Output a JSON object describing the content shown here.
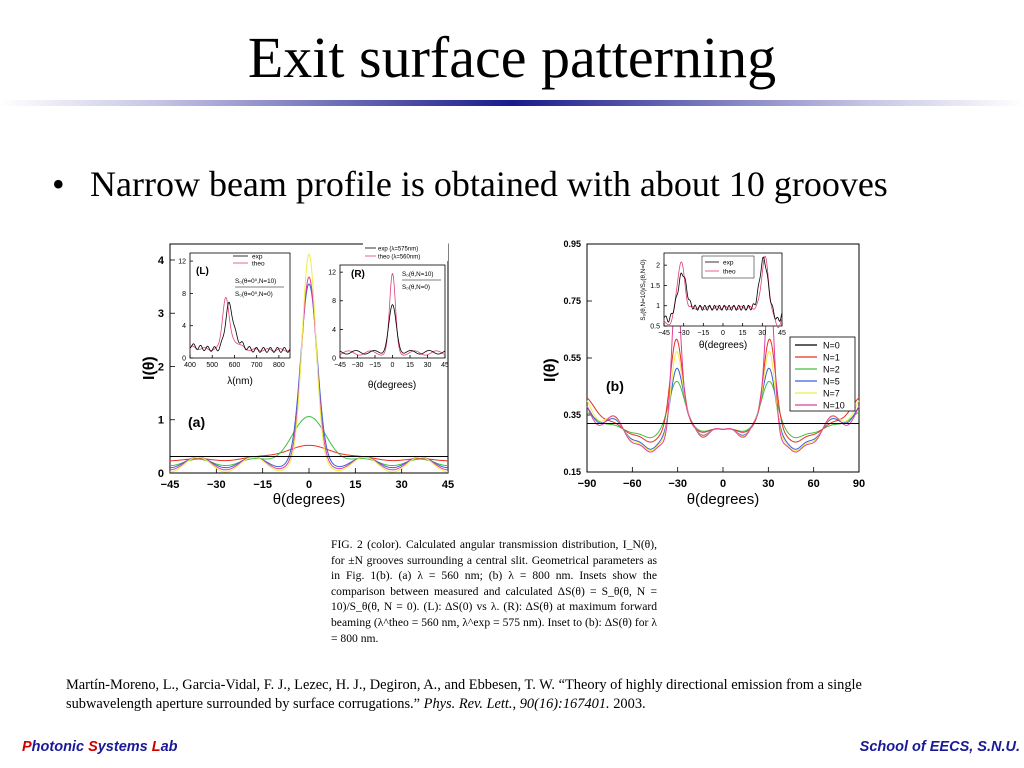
{
  "slide": {
    "title": "Exit surface patterning",
    "bullet_mark": "•",
    "bullet": "Narrow beam profile is obtained with about 10 grooves"
  },
  "figure_a": {
    "panel_label": "(a)",
    "ylabel": "I(θ)",
    "xlabel": "θ(degrees)",
    "xticks": [
      "−45",
      "−30",
      "−15",
      "0",
      "15",
      "30",
      "45"
    ],
    "yticks": [
      "0",
      "1",
      "2",
      "3",
      "4"
    ],
    "inset_L": {
      "label": "(L)",
      "legend": [
        "exp",
        "theo"
      ],
      "formula_num": "S₀(θ=0⁰,N=10)",
      "formula_den": "S₀(θ=0⁰,N=0)",
      "yticks": [
        "0",
        "4",
        "8",
        "12"
      ],
      "xticks": [
        "400",
        "500",
        "600",
        "700",
        "800"
      ],
      "xlabel": "λ(nm)"
    },
    "inset_R": {
      "label": "(R)",
      "legend": [
        "exp (λ=575nm)",
        "theo (λ=560nm)"
      ],
      "formula_num": "S₀(θ,N=10)",
      "formula_den": "S₀(θ,N=0)",
      "yticks": [
        "0",
        "4",
        "8",
        "12"
      ],
      "xticks": [
        "−45",
        "−30",
        "−15",
        "0",
        "15",
        "30",
        "45"
      ],
      "xlabel": "θ(degrees)"
    }
  },
  "figure_b": {
    "panel_label": "(b)",
    "ylabel": "I(θ)",
    "xlabel": "θ(degrees)",
    "xticks": [
      "−90",
      "−60",
      "−30",
      "0",
      "30",
      "60",
      "90"
    ],
    "yticks": [
      "0.15",
      "0.35",
      "0.55",
      "0.75",
      "0.95"
    ],
    "legend": [
      "N=0",
      "N=1",
      "N=2",
      "N=5",
      "N=7",
      "N=10"
    ],
    "inset": {
      "legend": [
        "exp",
        "theo"
      ],
      "ylabel": "S₀(θ,N=10)/S₀(θ,N=0)",
      "yticks": [
        "0.5",
        "1",
        "1.5",
        "2"
      ],
      "xticks": [
        "−45",
        "−30",
        "−15",
        "0",
        "15",
        "30",
        "45"
      ],
      "xlabel": "θ(degrees)"
    }
  },
  "colors": {
    "N0": "#000000",
    "N1": "#e8321e",
    "N2": "#3fbf3f",
    "N5": "#3a5fd9",
    "N7": "#eeee4a",
    "N10": "#e0409a",
    "exp": "#000000",
    "theo": "#e0407a"
  },
  "chart_data": [
    {
      "type": "line",
      "title": "",
      "xlabel": "θ(degrees)",
      "ylabel": "I(θ)",
      "xlim": [
        -45,
        45
      ],
      "ylim": [
        0,
        4.3
      ],
      "series": [
        {
          "name": "",
          "x": [
            -45,
            -30,
            -15,
            -8,
            -4,
            0,
            4,
            8,
            15,
            30,
            45
          ],
          "values": [
            0.3,
            0.3,
            0.3,
            0.3,
            0.3,
            0.3,
            0.3,
            0.3,
            0.3,
            0.3,
            0.3
          ]
        },
        {
          "name": "",
          "x": [
            -45,
            -30,
            -15,
            -8,
            -4,
            0,
            4,
            8,
            15,
            30,
            45
          ],
          "values": [
            0.28,
            0.26,
            0.3,
            0.38,
            0.45,
            0.5,
            0.45,
            0.38,
            0.3,
            0.26,
            0.28
          ]
        },
        {
          "name": "",
          "x": [
            -45,
            -30,
            -15,
            -8,
            -4,
            0,
            4,
            8,
            15,
            30,
            45
          ],
          "values": [
            0.25,
            0.2,
            0.35,
            0.65,
            0.85,
            1.0,
            0.85,
            0.65,
            0.35,
            0.2,
            0.25
          ]
        },
        {
          "name": "",
          "x": [
            -45,
            -30,
            -15,
            -8,
            -4,
            0,
            4,
            8,
            15,
            30,
            45
          ],
          "values": [
            0.22,
            0.15,
            0.2,
            0.6,
            2.2,
            3.4,
            2.2,
            0.6,
            0.2,
            0.15,
            0.22
          ]
        },
        {
          "name": "",
          "x": [
            -45,
            -30,
            -15,
            -8,
            -4,
            0,
            4,
            8,
            15,
            30,
            45
          ],
          "values": [
            0.2,
            0.1,
            0.12,
            0.5,
            2.6,
            4.1,
            2.6,
            0.5,
            0.12,
            0.1,
            0.2
          ]
        },
        {
          "name": "",
          "x": [
            -45,
            -30,
            -15,
            -8,
            -4,
            0,
            4,
            8,
            15,
            30,
            45
          ],
          "values": [
            0.2,
            0.08,
            0.1,
            0.45,
            2.4,
            3.6,
            2.4,
            0.45,
            0.1,
            0.08,
            0.2
          ]
        }
      ]
    },
    {
      "type": "line",
      "title": "",
      "xlabel": "θ(degrees)",
      "ylabel": "I(θ)",
      "xlim": [
        -90,
        90
      ],
      "ylim": [
        0.15,
        0.95
      ],
      "series": [
        {
          "name": "N=0",
          "x": [
            -90,
            -60,
            -30,
            0,
            30,
            60,
            90
          ],
          "values": [
            0.32,
            0.32,
            0.32,
            0.32,
            0.32,
            0.32,
            0.32
          ]
        },
        {
          "name": "N=1",
          "x": [
            -90,
            -60,
            -45,
            -32,
            -30,
            -15,
            0,
            15,
            30,
            32,
            45,
            60,
            90
          ],
          "values": [
            0.42,
            0.3,
            0.25,
            0.62,
            0.65,
            0.3,
            0.35,
            0.3,
            0.65,
            0.62,
            0.25,
            0.3,
            0.42
          ]
        },
        {
          "name": "N=2",
          "x": [
            -90,
            -60,
            -45,
            -32,
            -30,
            -15,
            0,
            15,
            30,
            32,
            45,
            60,
            90
          ],
          "values": [
            0.35,
            0.28,
            0.25,
            0.48,
            0.5,
            0.3,
            0.33,
            0.3,
            0.5,
            0.48,
            0.25,
            0.28,
            0.35
          ]
        },
        {
          "name": "N=5",
          "x": [
            -90,
            -60,
            -45,
            -32,
            -30,
            -15,
            0,
            15,
            30,
            32,
            45,
            60,
            90
          ],
          "values": [
            0.38,
            0.22,
            0.2,
            0.55,
            0.5,
            0.28,
            0.3,
            0.28,
            0.5,
            0.55,
            0.2,
            0.22,
            0.38
          ]
        },
        {
          "name": "N=7",
          "x": [
            -90,
            -60,
            -45,
            -32,
            -30,
            -15,
            0,
            15,
            30,
            32,
            45,
            60,
            90
          ],
          "values": [
            0.4,
            0.2,
            0.18,
            0.6,
            0.55,
            0.25,
            0.3,
            0.25,
            0.55,
            0.6,
            0.18,
            0.2,
            0.4
          ]
        },
        {
          "name": "N=10",
          "x": [
            -90,
            -60,
            -45,
            -32,
            -30,
            -15,
            0,
            15,
            30,
            32,
            45,
            60,
            90
          ],
          "values": [
            0.38,
            0.2,
            0.18,
            0.8,
            0.85,
            0.22,
            0.3,
            0.22,
            0.85,
            0.8,
            0.18,
            0.2,
            0.38
          ]
        }
      ]
    }
  ],
  "caption": {
    "paragraph": "FIG. 2 (color). Calculated angular transmission distribution, I_N(θ), for ±N grooves surrounding a central slit. Geometrical parameters as in Fig. 1(b). (a) λ = 560 nm; (b) λ = 800 nm. Insets show the comparison between measured and calculated ΔS(θ) = S_θ(θ, N = 10)/S_θ(θ, N = 0). (L): ΔS(0) vs λ. (R): ΔS(θ) at maximum forward beaming (λ^theo = 560 nm, λ^exp = 575 nm). Inset to (b): ΔS(θ) for λ = 800 nm."
  },
  "reference": {
    "authors": "Martín-Moreno, L., Garcia-Vidal, F. J., Lezec, H. J., Degiron, A., and Ebbesen, T. W. “Theory of highly directional emission from a single subwavelength aperture surrounded by surface corrugations.”",
    "journal": "Phys. Rev. Lett., 90(16):167401.",
    "year": "2003."
  },
  "footer": {
    "lab_p": "P",
    "lab_hotonic": "hotonic ",
    "lab_s": "S",
    "lab_ystems": "ystems ",
    "lab_l": "L",
    "lab_ab": "ab",
    "school": "School of EECS, S.N.U."
  }
}
